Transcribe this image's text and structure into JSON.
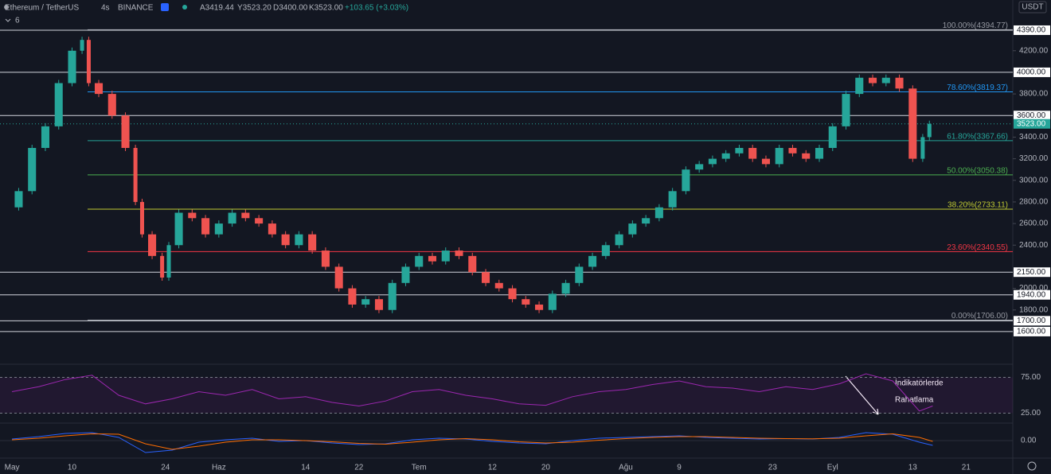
{
  "chart_data": {
    "type": "candlestick",
    "title": "Ethereum / TetherUS",
    "interval": "4s",
    "exchange": "BINANCE",
    "ohlc": [
      "A3419.44",
      "Y3523.20",
      "D3400.00",
      "K3523.00",
      "+103.65 (+3.03%)"
    ],
    "indicator_count": "6",
    "currency": "USDT",
    "up_color": "#26a69a",
    "down_color": "#ef5350",
    "xlim": [
      -1.8,
      150
    ],
    "ylim": [
      1430,
      4537
    ],
    "xticks": [
      {
        "value": 0,
        "label": "May"
      },
      {
        "value": 9,
        "label": "10"
      },
      {
        "value": 23,
        "label": "24"
      },
      {
        "value": 31,
        "label": "Haz"
      },
      {
        "value": 44,
        "label": "14"
      },
      {
        "value": 52,
        "label": "22"
      },
      {
        "value": 61,
        "label": "Tem"
      },
      {
        "value": 72,
        "label": "12"
      },
      {
        "value": 80,
        "label": "20"
      },
      {
        "value": 92,
        "label": "Ağu"
      },
      {
        "value": 100,
        "label": "9"
      },
      {
        "value": 114,
        "label": "23"
      },
      {
        "value": 123,
        "label": "Eyl"
      },
      {
        "value": 135,
        "label": "13"
      },
      {
        "value": 143,
        "label": "21"
      }
    ],
    "yticks": [
      {
        "value": 4200,
        "label": "4200.00"
      },
      {
        "value": 3800,
        "label": "3800.00"
      },
      {
        "value": 3400,
        "label": "3400.00"
      },
      {
        "value": 3200,
        "label": "3200.00"
      },
      {
        "value": 3000,
        "label": "3000.00"
      },
      {
        "value": 2800,
        "label": "2800.00"
      },
      {
        "value": 2600,
        "label": "2600.00"
      },
      {
        "value": 2400,
        "label": "2400.00"
      },
      {
        "value": 2000,
        "label": "2000.00"
      },
      {
        "value": 1800,
        "label": "1800.00"
      }
    ],
    "levels": [
      {
        "value": 4390,
        "label": "4390.00"
      },
      {
        "value": 4000,
        "label": "4000.00"
      },
      {
        "value": 3600,
        "label": "3600.00"
      },
      {
        "value": 2150,
        "label": "2150.00"
      },
      {
        "value": 1940,
        "label": "1940.00"
      },
      {
        "value": 1700,
        "label": "1700.00"
      },
      {
        "value": 1600,
        "label": "1600.00"
      }
    ],
    "last_price": {
      "value": 3523,
      "label": "3523.00"
    },
    "fib": [
      {
        "value": 4394.77,
        "label": "100.00%(4394.77)",
        "color": "#9598a1"
      },
      {
        "value": 3819.37,
        "label": "78.60%(3819.37)",
        "color": "#2196f3"
      },
      {
        "value": 3367.66,
        "label": "61.80%(3367.66)",
        "color": "#26a69a"
      },
      {
        "value": 3050.38,
        "label": "50.00%(3050.38)",
        "color": "#4caf50"
      },
      {
        "value": 2733.11,
        "label": "38.20%(2733.11)",
        "color": "#c0ca33"
      },
      {
        "value": 2340.55,
        "label": "23.60%(2340.55)",
        "color": "#f23645"
      },
      {
        "value": 1706,
        "label": "0.00%(1706.00)",
        "color": "#9598a1"
      }
    ],
    "price": {
      "x": [
        0,
        2,
        4,
        6,
        8,
        10,
        11,
        12,
        14,
        16,
        18,
        19,
        20,
        22,
        23,
        24,
        26,
        28,
        30,
        32,
        34,
        36,
        38,
        40,
        42,
        44,
        46,
        48,
        50,
        52,
        54,
        56,
        58,
        60,
        62,
        64,
        66,
        68,
        70,
        72,
        74,
        76,
        78,
        80,
        82,
        84,
        86,
        88,
        90,
        92,
        94,
        96,
        98,
        100,
        102,
        104,
        106,
        108,
        110,
        112,
        114,
        116,
        118,
        120,
        122,
        124,
        126,
        128,
        130,
        132,
        134,
        136,
        137,
        138
      ],
      "values": [
        2750,
        2900,
        3300,
        3500,
        3900,
        4200,
        4300,
        3900,
        3800,
        3600,
        3300,
        2800,
        2500,
        2300,
        2100,
        2400,
        2700,
        2650,
        2500,
        2600,
        2700,
        2650,
        2600,
        2500,
        2400,
        2500,
        2350,
        2200,
        2000,
        1850,
        1900,
        1800,
        2050,
        2200,
        2300,
        2250,
        2350,
        2300,
        2150,
        2050,
        2000,
        1900,
        1850,
        1800,
        1950,
        2050,
        2200,
        2300,
        2400,
        2500,
        2600,
        2650,
        2750,
        2900,
        3100,
        3150,
        3200,
        3250,
        3300,
        3200,
        3150,
        3300,
        3250,
        3200,
        3300,
        3500,
        3800,
        3950,
        3900,
        3950,
        3850,
        3200,
        3400,
        3523
      ]
    },
    "rsi": {
      "color": "#9c27b0",
      "ylim": [
        10,
        90
      ],
      "yticks": [
        {
          "value": 75,
          "label": "75.00"
        },
        {
          "value": 25,
          "label": "25.00"
        }
      ],
      "x": [
        0,
        4,
        8,
        12,
        16,
        20,
        24,
        28,
        32,
        36,
        40,
        44,
        48,
        52,
        56,
        60,
        64,
        68,
        72,
        76,
        80,
        84,
        88,
        92,
        96,
        100,
        104,
        108,
        112,
        116,
        120,
        124,
        128,
        132,
        136,
        138
      ],
      "values": [
        55,
        62,
        72,
        78,
        50,
        38,
        45,
        55,
        50,
        58,
        45,
        48,
        40,
        35,
        42,
        55,
        58,
        50,
        45,
        38,
        36,
        48,
        55,
        58,
        65,
        70,
        62,
        60,
        55,
        62,
        58,
        66,
        80,
        70,
        28,
        35
      ]
    },
    "macd": {
      "ylim": [
        -200,
        200
      ],
      "yticks": [
        {
          "value": 0,
          "label": "0.00"
        }
      ],
      "x": [
        0,
        4,
        8,
        12,
        16,
        20,
        24,
        28,
        32,
        36,
        40,
        44,
        48,
        52,
        56,
        60,
        64,
        68,
        72,
        76,
        80,
        84,
        88,
        92,
        96,
        100,
        104,
        108,
        112,
        116,
        120,
        124,
        128,
        132,
        136,
        138
      ],
      "line": {
        "color": "#2962ff",
        "values": [
          20,
          50,
          90,
          100,
          40,
          -150,
          -120,
          -20,
          10,
          30,
          -10,
          0,
          -30,
          -50,
          -40,
          10,
          30,
          20,
          -10,
          -30,
          -40,
          0,
          30,
          40,
          50,
          60,
          40,
          30,
          20,
          25,
          20,
          40,
          100,
          80,
          -20,
          -60
        ]
      },
      "signal": {
        "color": "#ff6d00",
        "values": [
          10,
          30,
          60,
          85,
          80,
          -40,
          -110,
          -70,
          -20,
          10,
          10,
          0,
          -15,
          -35,
          -45,
          -20,
          10,
          25,
          10,
          -15,
          -30,
          -20,
          5,
          25,
          40,
          50,
          50,
          40,
          30,
          25,
          22,
          30,
          60,
          85,
          40,
          -10
        ]
      }
    },
    "annotation": [
      "İndikatörlerde",
      "Rahatlama"
    ]
  }
}
